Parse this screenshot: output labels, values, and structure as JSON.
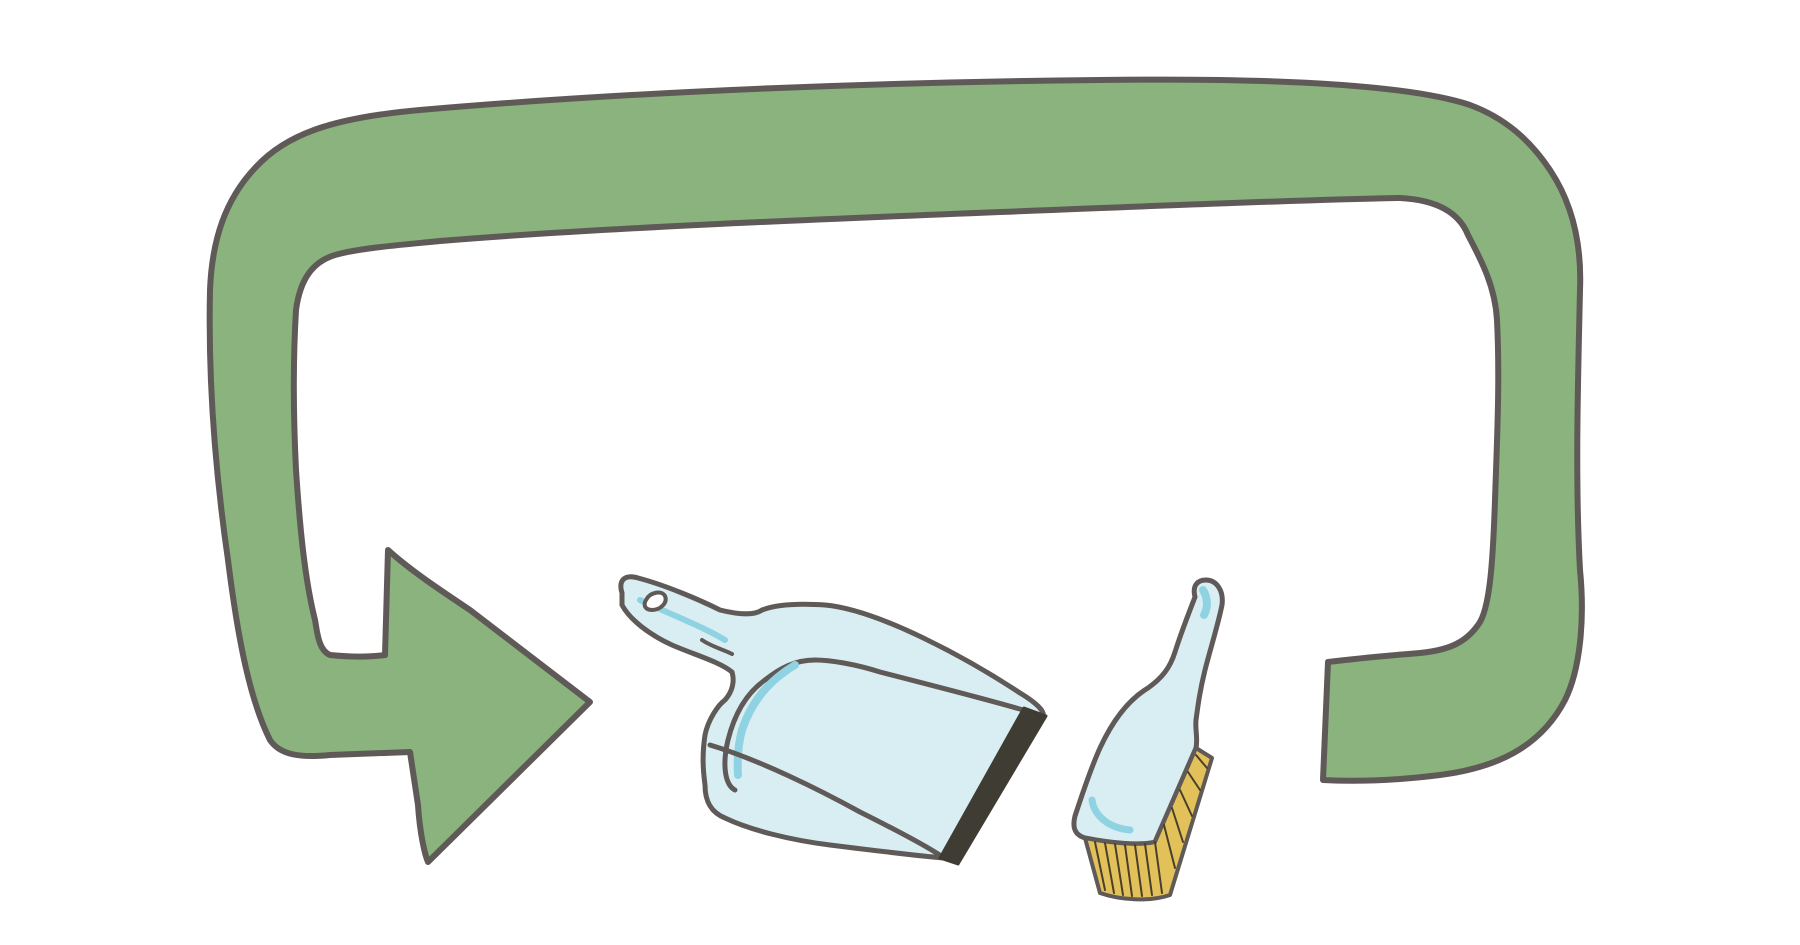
{
  "illustration": {
    "subjects": [
      "cycle-arrow-icon",
      "dustpan-icon",
      "hand-brush-icon"
    ],
    "colors": {
      "background": "#ffffff",
      "arrow_fill": "#8ab37e",
      "outline": "#5f5a57",
      "plastic_fill": "#d9eef3",
      "plastic_shade": "#8fd3e3",
      "dustpan_lip": "#3f3d33",
      "bristles": "#e2c15a",
      "bristle_lines": "#4a3f2a"
    }
  }
}
